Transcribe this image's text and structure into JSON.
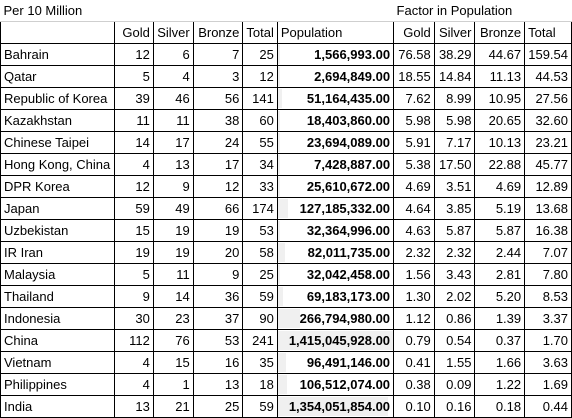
{
  "titles": {
    "left": "Per 10 Million",
    "right": "Factor in Population"
  },
  "headers": {
    "gold": "Gold",
    "silver": "Silver",
    "bronze": "Bronze",
    "total": "Total",
    "population": "Population",
    "f_gold": "Gold",
    "f_silver": "Silver",
    "f_bronze": "Bronze",
    "f_total": "Total"
  },
  "rows": [
    {
      "country": "Bahrain",
      "gold": "12",
      "silver": "6",
      "bronze": "7",
      "total": "25",
      "population": "1,566,993.00",
      "f_gold": "76.58",
      "f_silver": "38.29",
      "f_bronze": "44.67",
      "f_total": "159.54"
    },
    {
      "country": "Qatar",
      "gold": "5",
      "silver": "4",
      "bronze": "3",
      "total": "12",
      "population": "2,694,849.00",
      "f_gold": "18.55",
      "f_silver": "14.84",
      "f_bronze": "11.13",
      "f_total": "44.53"
    },
    {
      "country": "Republic of Korea",
      "gold": "39",
      "silver": "46",
      "bronze": "56",
      "total": "141",
      "population": "51,164,435.00",
      "f_gold": "7.62",
      "f_silver": "8.99",
      "f_bronze": "10.95",
      "f_total": "27.56"
    },
    {
      "country": "Kazakhstan",
      "gold": "11",
      "silver": "11",
      "bronze": "38",
      "total": "60",
      "population": "18,403,860.00",
      "f_gold": "5.98",
      "f_silver": "5.98",
      "f_bronze": "20.65",
      "f_total": "32.60"
    },
    {
      "country": "Chinese Taipei",
      "gold": "14",
      "silver": "17",
      "bronze": "24",
      "total": "55",
      "population": "23,694,089.00",
      "f_gold": "5.91",
      "f_silver": "7.17",
      "f_bronze": "10.13",
      "f_total": "23.21"
    },
    {
      "country": "Hong Kong, China",
      "gold": "4",
      "silver": "13",
      "bronze": "17",
      "total": "34",
      "population": "7,428,887.00",
      "f_gold": "5.38",
      "f_silver": "17.50",
      "f_bronze": "22.88",
      "f_total": "45.77"
    },
    {
      "country": "DPR Korea",
      "gold": "12",
      "silver": "9",
      "bronze": "12",
      "total": "33",
      "population": "25,610,672.00",
      "f_gold": "4.69",
      "f_silver": "3.51",
      "f_bronze": "4.69",
      "f_total": "12.89"
    },
    {
      "country": "Japan",
      "gold": "59",
      "silver": "49",
      "bronze": "66",
      "total": "174",
      "population": "127,185,332.00",
      "f_gold": "4.64",
      "f_silver": "3.85",
      "f_bronze": "5.19",
      "f_total": "13.68"
    },
    {
      "country": "Uzbekistan",
      "gold": "15",
      "silver": "19",
      "bronze": "19",
      "total": "53",
      "population": "32,364,996.00",
      "f_gold": "4.63",
      "f_silver": "5.87",
      "f_bronze": "5.87",
      "f_total": "16.38"
    },
    {
      "country": "IR Iran",
      "gold": "19",
      "silver": "19",
      "bronze": "20",
      "total": "58",
      "population": "82,011,735.00",
      "f_gold": "2.32",
      "f_silver": "2.32",
      "f_bronze": "2.44",
      "f_total": "7.07"
    },
    {
      "country": "Malaysia",
      "gold": "5",
      "silver": "11",
      "bronze": "9",
      "total": "25",
      "population": "32,042,458.00",
      "f_gold": "1.56",
      "f_silver": "3.43",
      "f_bronze": "2.81",
      "f_total": "7.80"
    },
    {
      "country": "Thailand",
      "gold": "9",
      "silver": "14",
      "bronze": "36",
      "total": "59",
      "population": "69,183,173.00",
      "f_gold": "1.30",
      "f_silver": "2.02",
      "f_bronze": "5.20",
      "f_total": "8.53"
    },
    {
      "country": "Indonesia",
      "gold": "30",
      "silver": "23",
      "bronze": "37",
      "total": "90",
      "population": "266,794,980.00",
      "f_gold": "1.12",
      "f_silver": "0.86",
      "f_bronze": "1.39",
      "f_total": "3.37"
    },
    {
      "country": "China",
      "gold": "112",
      "silver": "76",
      "bronze": "53",
      "total": "241",
      "population": "1,415,045,928.00",
      "f_gold": "0.79",
      "f_silver": "0.54",
      "f_bronze": "0.37",
      "f_total": "1.70"
    },
    {
      "country": "Vietnam",
      "gold": "4",
      "silver": "15",
      "bronze": "16",
      "total": "35",
      "population": "96,491,146.00",
      "f_gold": "0.41",
      "f_silver": "1.55",
      "f_bronze": "1.66",
      "f_total": "3.63"
    },
    {
      "country": "Philippines",
      "gold": "4",
      "silver": "1",
      "bronze": "13",
      "total": "18",
      "population": "106,512,074.00",
      "f_gold": "0.38",
      "f_silver": "0.09",
      "f_bronze": "1.22",
      "f_total": "1.69"
    },
    {
      "country": "India",
      "gold": "13",
      "silver": "21",
      "bronze": "25",
      "total": "59",
      "population": "1,354,051,854.00",
      "f_gold": "0.10",
      "f_silver": "0.16",
      "f_bronze": "0.18",
      "f_total": "0.44"
    }
  ],
  "colors": {
    "grid": "#000000",
    "data_bar": "#f0f0f0",
    "background": "#ffffff"
  }
}
